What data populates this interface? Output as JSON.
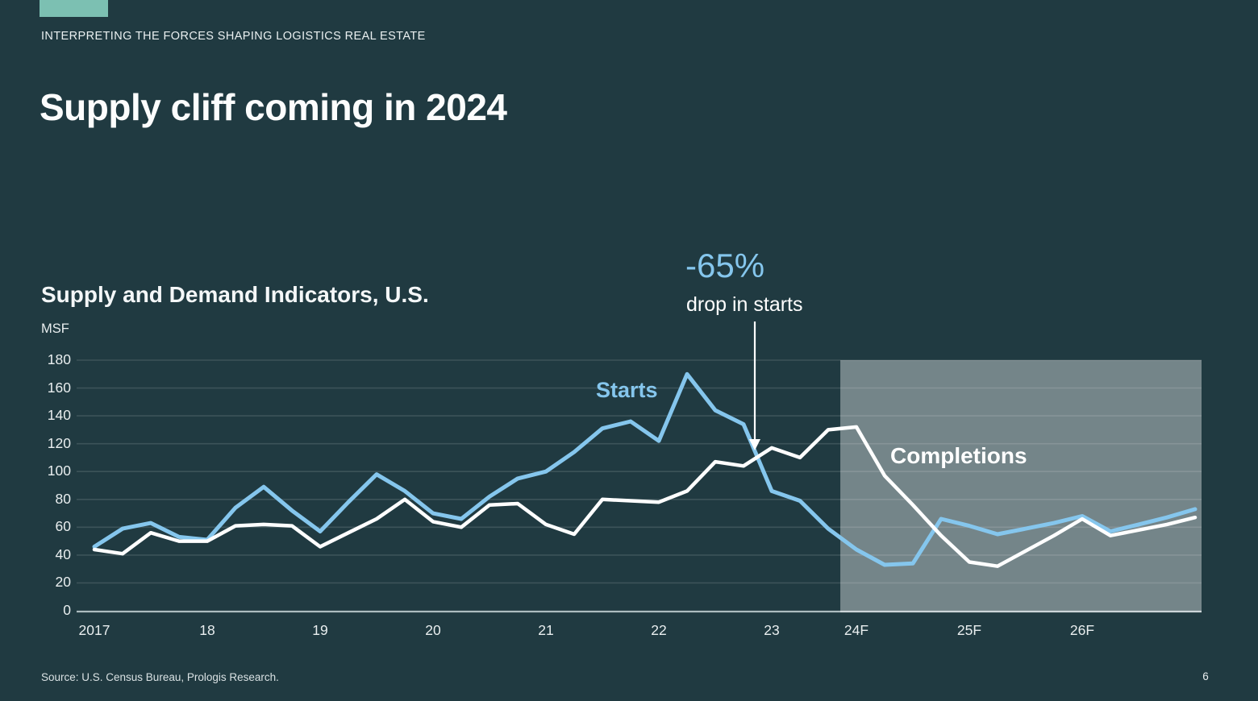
{
  "slide": {
    "eyebrow": "INTERPRETING THE FORCES SHAPING LOGISTICS REAL ESTATE",
    "title": "Supply cliff coming in 2024",
    "source": "Source: U.S. Census Bureau, Prologis Research.",
    "page_number": "6",
    "accent_color": "#7CC0B2",
    "background_color": "#203A41"
  },
  "chart": {
    "title": "Supply and Demand Indicators, U.S.",
    "unit_label": "MSF",
    "annotation_value": "-65%",
    "annotation_caption": "drop in starts",
    "starts_label": "Starts",
    "completions_label": "Completions",
    "colors": {
      "starts_line": "#85C6ED",
      "completions_line": "#FFFFFF",
      "forecast_band": "rgba(255,255,255,0.38)",
      "gridline": "rgba(255,255,255,0.13)",
      "axis_line": "#ADBCC0",
      "arrow": "#FFFFFF"
    }
  },
  "chart_data": {
    "type": "line",
    "title": "Supply and Demand Indicators, U.S.",
    "ylabel": "MSF",
    "ylim": [
      0,
      180
    ],
    "ytick_step": 20,
    "yticks": [
      0,
      20,
      40,
      60,
      80,
      100,
      120,
      140,
      160,
      180
    ],
    "x_unit": "quarters, 2017Q1 through 2026Q4 (F = forecast)",
    "xticks": [
      {
        "label": "2017",
        "quarter_index": 0
      },
      {
        "label": "18",
        "quarter_index": 4
      },
      {
        "label": "19",
        "quarter_index": 8
      },
      {
        "label": "20",
        "quarter_index": 12
      },
      {
        "label": "21",
        "quarter_index": 16
      },
      {
        "label": "22",
        "quarter_index": 20
      },
      {
        "label": "23",
        "quarter_index": 24
      },
      {
        "label": "24F",
        "quarter_index": 27
      },
      {
        "label": "25F",
        "quarter_index": 31
      },
      {
        "label": "26F",
        "quarter_index": 35
      }
    ],
    "forecast_band_start_quarter_index": 26.43,
    "grid": true,
    "series": [
      {
        "name": "Starts",
        "values": [
          46,
          59,
          63,
          53,
          51,
          74,
          89,
          72,
          57,
          78,
          98,
          86,
          70,
          66,
          82,
          95,
          100,
          114,
          131,
          136,
          122,
          170,
          144,
          134,
          86,
          79,
          59,
          44,
          33,
          34,
          66,
          61,
          55,
          59,
          63,
          68,
          57,
          62,
          67,
          73
        ]
      },
      {
        "name": "Completions",
        "values": [
          44,
          41,
          56,
          50,
          50,
          61,
          62,
          61,
          46,
          56,
          66,
          80,
          64,
          60,
          76,
          77,
          62,
          55,
          80,
          79,
          78,
          86,
          107,
          104,
          117,
          110,
          130,
          132,
          97,
          76,
          54,
          35,
          32,
          43,
          54,
          66,
          54,
          58,
          62,
          67
        ]
      }
    ],
    "annotation": {
      "text": "-65%",
      "caption": "drop in starts",
      "arrow_at_quarter_index": 23.4
    }
  }
}
